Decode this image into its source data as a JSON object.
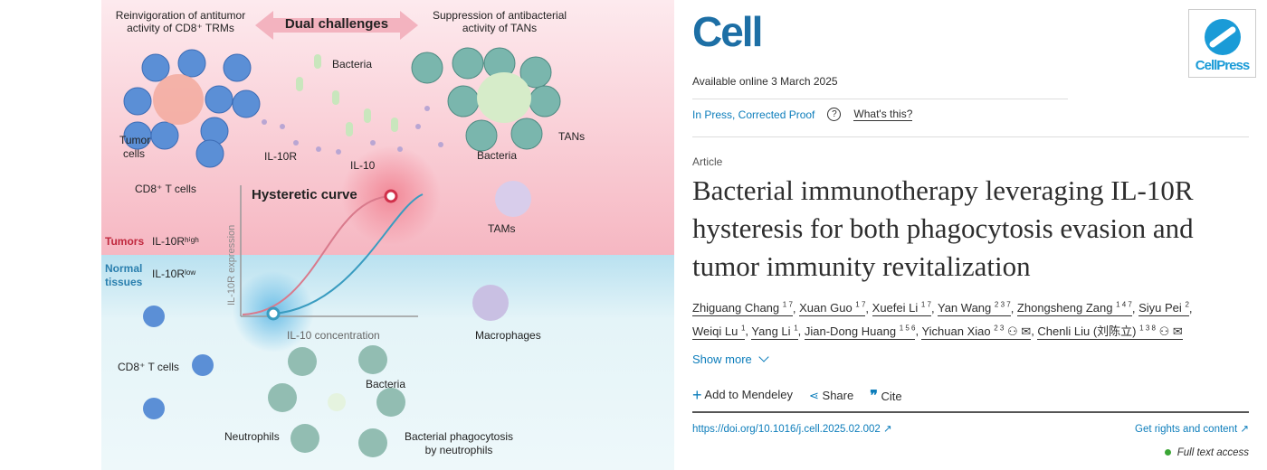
{
  "graphic": {
    "dual": "Dual challenges",
    "left_title": [
      "Reinvigoration of antitumor",
      "activity of CD8⁺ TRMs"
    ],
    "right_title": [
      "Suppression of antibacterial",
      "activity of TANs"
    ],
    "bacteria": "Bacteria",
    "tumor_cells": [
      "Tumor",
      "cells"
    ],
    "il10r": "IL-10R",
    "il10": "IL-10",
    "cd8_top": "CD8⁺ T cells",
    "tans": "TANs",
    "bacteria2": "Bacteria",
    "tams": "TAMs",
    "curve": "Hysteretic curve",
    "yaxis": "IL-10R expression",
    "xaxis": "IL-10 concentration",
    "tumors": "Tumors",
    "il10r_high": "IL-10Rʰⁱᵍʰ",
    "normal": [
      "Normal",
      "tissues"
    ],
    "il10r_low": "IL-10Rˡᵒʷ",
    "macrophages": "Macrophages",
    "cd8_bottom": "CD8⁺ T cells",
    "bacteria3": "Bacteria",
    "neutrophils": "Neutrophils",
    "phago": [
      "Bacterial phagocytosis",
      "by neutrophils"
    ],
    "colors": {
      "top_bg": "#fbe3e8",
      "bottom_bg": "#dff1f6",
      "red": "#d0304a",
      "blue": "#3a9cc0"
    }
  },
  "journal": {
    "logo": "Cell",
    "publisher": "CellPress",
    "available": "Available online 3 March 2025",
    "status": "In Press, Corrected Proof",
    "help_icon": "question-circle",
    "whats_this": "What's this?"
  },
  "article": {
    "type": "Article",
    "title": "Bacterial immunotherapy leveraging IL-10R hysteresis for both phagocytosis evasion and tumor immunity revitalization"
  },
  "authors": [
    {
      "name": "Zhiguang Chang",
      "sup": "1 7"
    },
    {
      "name": "Xuan Guo",
      "sup": "1 7"
    },
    {
      "name": "Xuefei Li",
      "sup": "1 7"
    },
    {
      "name": "Yan Wang",
      "sup": "2 3 7"
    },
    {
      "name": "Zhongsheng Zang",
      "sup": "1 4 7"
    },
    {
      "name": "Siyu Pei",
      "sup": "2"
    },
    {
      "name": "Weiqi Lu",
      "sup": "1"
    },
    {
      "name": "Yang Li",
      "sup": "1"
    },
    {
      "name": "Jian-Dong Huang",
      "sup": "1 5 6"
    },
    {
      "name": "Yichuan Xiao",
      "sup": "2 3"
    },
    {
      "name": "Chenli Liu (刘陈立)",
      "sup": "1 3 8"
    }
  ],
  "actions": {
    "show_more": "Show more",
    "mendeley": "Add to Mendeley",
    "share": "Share",
    "cite": "Cite"
  },
  "links": {
    "doi": "https://doi.org/10.1016/j.cell.2025.02.002",
    "rights": "Get rights and content",
    "access": "Full text access"
  }
}
